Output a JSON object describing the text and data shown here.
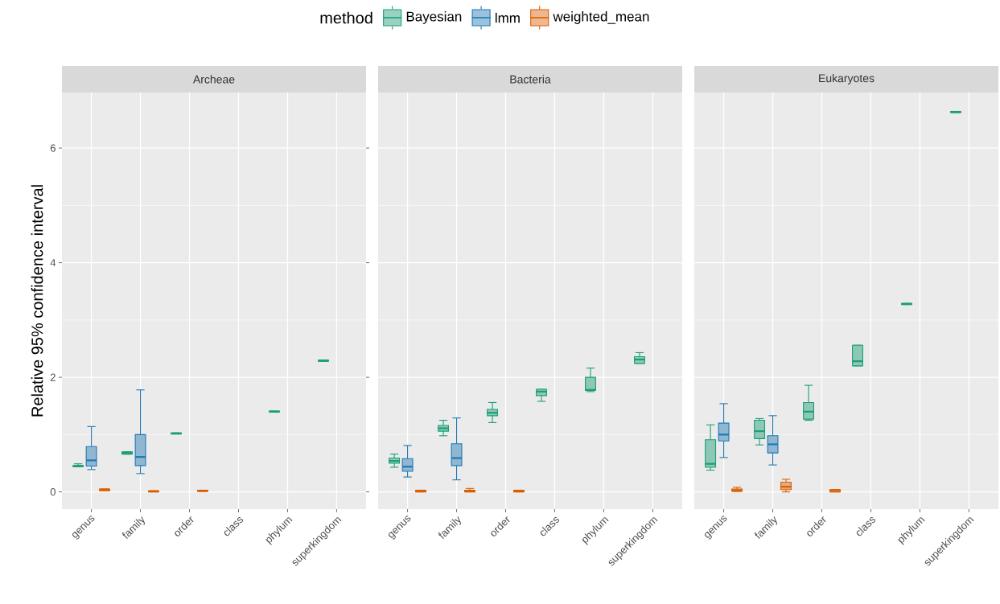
{
  "chart_data": [
    {
      "type": "box",
      "title": "Archeae",
      "ylabel": "Relative 95% confidence interval",
      "legend_title": "method",
      "legend": "top",
      "grid": true,
      "categories": [
        "genus",
        "family",
        "order",
        "class",
        "phylum",
        "superkingdom"
      ],
      "ylim": [
        -0.3,
        6.97
      ],
      "yticks": [
        0,
        2,
        4,
        6
      ],
      "series": [
        {
          "name": "Bayesian",
          "color": "#1b9e77",
          "boxes": [
            {
              "low": 0.44,
              "q1": 0.44,
              "median": 0.45,
              "q3": 0.46,
              "high": 0.49
            },
            {
              "low": 0.66,
              "q1": 0.66,
              "median": 0.68,
              "q3": 0.7,
              "high": 0.7
            },
            {
              "low": 1.01,
              "q1": 1.01,
              "median": 1.02,
              "q3": 1.03,
              "high": 1.03
            },
            null,
            {
              "low": 1.39,
              "q1": 1.39,
              "median": 1.4,
              "q3": 1.41,
              "high": 1.41
            },
            {
              "low": 2.28,
              "q1": 2.28,
              "median": 2.29,
              "q3": 2.3,
              "high": 2.3
            }
          ]
        },
        {
          "name": "lmm",
          "color": "#1f78b4",
          "boxes": [
            {
              "low": 0.39,
              "q1": 0.45,
              "median": 0.55,
              "q3": 0.79,
              "high": 1.14
            },
            {
              "low": 0.32,
              "q1": 0.46,
              "median": 0.61,
              "q3": 1.0,
              "high": 1.78
            },
            null,
            null,
            null,
            null
          ]
        },
        {
          "name": "weighted_mean",
          "color": "#d95f02",
          "boxes": [
            {
              "low": 0.02,
              "q1": 0.02,
              "median": 0.04,
              "q3": 0.05,
              "high": 0.05
            },
            {
              "low": 0.0,
              "q1": 0.0,
              "median": 0.01,
              "q3": 0.02,
              "high": 0.02
            },
            {
              "low": 0.01,
              "q1": 0.01,
              "median": 0.02,
              "q3": 0.03,
              "high": 0.03
            },
            null,
            null,
            null
          ]
        }
      ]
    },
    {
      "type": "box",
      "title": "Bacteria",
      "grid": true,
      "tick_labels": "x",
      "categories": [
        "genus",
        "family",
        "order",
        "class",
        "phylum",
        "superkingdom"
      ],
      "ylim": [
        -0.3,
        6.97
      ],
      "yticks": [
        0,
        2,
        4,
        6
      ],
      "series": [
        {
          "color": "#1b9e77",
          "boxes": [
            {
              "low": 0.43,
              "q1": 0.5,
              "median": 0.54,
              "q3": 0.59,
              "high": 0.66
            },
            {
              "low": 0.98,
              "q1": 1.06,
              "median": 1.11,
              "q3": 1.16,
              "high": 1.25
            },
            {
              "low": 1.21,
              "q1": 1.33,
              "median": 1.38,
              "q3": 1.44,
              "high": 1.56
            },
            {
              "low": 1.58,
              "q1": 1.68,
              "median": 1.75,
              "q3": 1.79,
              "high": 1.79
            },
            {
              "low": 1.75,
              "q1": 1.77,
              "median": 1.78,
              "q3": 2.0,
              "high": 2.16
            },
            {
              "low": 2.24,
              "q1": 2.24,
              "median": 2.31,
              "q3": 2.36,
              "high": 2.43
            }
          ]
        },
        {
          "color": "#1f78b4",
          "boxes": [
            {
              "low": 0.26,
              "q1": 0.36,
              "median": 0.44,
              "q3": 0.58,
              "high": 0.81
            },
            {
              "low": 0.21,
              "q1": 0.46,
              "median": 0.59,
              "q3": 0.84,
              "high": 1.29
            },
            null,
            null,
            null,
            null
          ]
        },
        {
          "color": "#d95f02",
          "boxes": [
            {
              "low": 0.0,
              "q1": 0.0,
              "median": 0.01,
              "q3": 0.03,
              "high": 0.03
            },
            {
              "low": 0.0,
              "q1": 0.0,
              "median": 0.02,
              "q3": 0.03,
              "high": 0.06
            },
            {
              "low": 0.0,
              "q1": 0.0,
              "median": 0.02,
              "q3": 0.03,
              "high": 0.03
            },
            null,
            null,
            null
          ]
        }
      ]
    },
    {
      "type": "box",
      "title": "Eukaryotes",
      "grid": true,
      "tick_labels": "x",
      "categories": [
        "genus",
        "family",
        "order",
        "class",
        "phylum",
        "superkingdom"
      ],
      "ylim": [
        -0.3,
        6.97
      ],
      "yticks": [
        0,
        2,
        4,
        6
      ],
      "series": [
        {
          "color": "#1b9e77",
          "boxes": [
            {
              "low": 0.38,
              "q1": 0.43,
              "median": 0.49,
              "q3": 0.91,
              "high": 1.17
            },
            {
              "low": 0.82,
              "q1": 0.93,
              "median": 1.06,
              "q3": 1.25,
              "high": 1.28
            },
            {
              "low": 1.25,
              "q1": 1.27,
              "median": 1.4,
              "q3": 1.56,
              "high": 1.86
            },
            {
              "low": 2.2,
              "q1": 2.2,
              "median": 2.28,
              "q3": 2.56,
              "high": 2.56
            },
            {
              "low": 3.27,
              "q1": 3.27,
              "median": 3.28,
              "q3": 3.29,
              "high": 3.29
            },
            {
              "low": 6.62,
              "q1": 6.62,
              "median": 6.63,
              "q3": 6.64,
              "high": 6.64
            }
          ]
        },
        {
          "color": "#1f78b4",
          "boxes": [
            {
              "low": 0.6,
              "q1": 0.89,
              "median": 1.0,
              "q3": 1.2,
              "high": 1.54
            },
            {
              "low": 0.47,
              "q1": 0.68,
              "median": 0.83,
              "q3": 0.98,
              "high": 1.33
            },
            null,
            null,
            null,
            null
          ]
        },
        {
          "color": "#d95f02",
          "boxes": [
            {
              "low": 0.01,
              "q1": 0.01,
              "median": 0.03,
              "q3": 0.05,
              "high": 0.08
            },
            {
              "low": 0.0,
              "q1": 0.04,
              "median": 0.09,
              "q3": 0.17,
              "high": 0.22
            },
            {
              "low": 0.0,
              "q1": 0.0,
              "median": 0.03,
              "q3": 0.04,
              "high": 0.04
            },
            null,
            null,
            null
          ]
        }
      ]
    }
  ]
}
